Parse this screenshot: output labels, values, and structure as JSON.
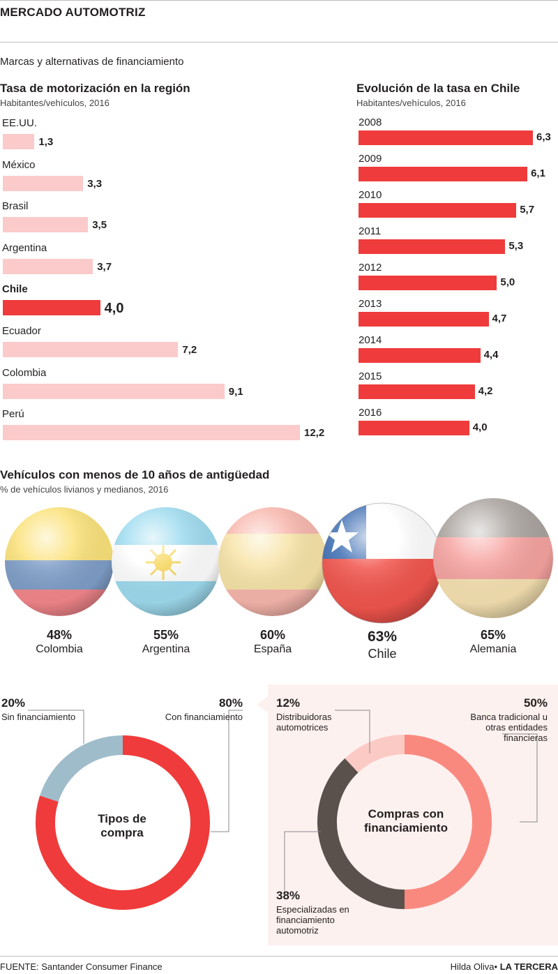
{
  "header": {
    "title": "MERCADO AUTOMOTRIZ",
    "subtitle": "Marcas y alternativas de financiamiento"
  },
  "colors": {
    "highlight": "#ef3b3b",
    "muted": "#fbcaca",
    "dark": "#5a514c",
    "grayblue": "#9fbccb",
    "rose": "#f9897f",
    "lightrose": "#fccac4",
    "panel": "#fdf1ef"
  },
  "chart_data": [
    {
      "type": "bar",
      "title": "Tasa de motorización en la región",
      "subtitle": "Habitantes/vehículos, 2016",
      "categories": [
        "EE.UU.",
        "México",
        "Brasil",
        "Argentina",
        "Chile",
        "Ecuador",
        "Colombia",
        "Perú"
      ],
      "values": [
        1.3,
        3.3,
        3.5,
        3.7,
        4.0,
        7.2,
        9.1,
        12.2
      ],
      "value_labels": [
        "1,3",
        "3,3",
        "3,5",
        "3,7",
        "4,0",
        "7,2",
        "9,1",
        "12,2"
      ],
      "highlight": "Chile",
      "orientation": "horizontal",
      "xlim": [
        0,
        12.2
      ]
    },
    {
      "type": "bar",
      "title": "Evolución de la tasa en Chile",
      "subtitle": "Habitantes/vehículos, 2016",
      "categories": [
        "2008",
        "2009",
        "2010",
        "2011",
        "2012",
        "2013",
        "2014",
        "2015",
        "2016"
      ],
      "values": [
        6.3,
        6.1,
        5.7,
        5.3,
        5.0,
        4.7,
        4.4,
        4.2,
        4.0
      ],
      "value_labels": [
        "6,3",
        "6,1",
        "5,7",
        "5,3",
        "5,0",
        "4,7",
        "4,4",
        "4,2",
        "4,0"
      ],
      "orientation": "horizontal",
      "xlim": [
        0,
        6.3
      ]
    },
    {
      "type": "bar",
      "title": "Vehículos con menos de 10 años de antigüedad",
      "subtitle": "% de vehículos livianos y medianos, 2016",
      "categories": [
        "Colombia",
        "Argentina",
        "España",
        "Chile",
        "Alemania"
      ],
      "values": [
        48,
        55,
        60,
        63,
        65
      ],
      "value_labels": [
        "48%",
        "55%",
        "60%",
        "63%",
        "65%"
      ],
      "highlight": "Chile",
      "icons": [
        "colombia-flag-icon",
        "argentina-flag-icon",
        "spain-flag-icon",
        "chile-flag-icon",
        "germany-flag-icon"
      ]
    },
    {
      "type": "pie",
      "title": "Tipos de compra",
      "slices": [
        {
          "pct_label": "80%",
          "label": "Con financiamiento",
          "value": 80
        },
        {
          "pct_label": "20%",
          "label": "Sin financiamiento",
          "value": 20
        }
      ]
    },
    {
      "type": "pie",
      "title": "Compras con financiamiento",
      "slices": [
        {
          "pct_label": "50%",
          "label": "Banca tradicional u otras entidades financieras",
          "value": 50
        },
        {
          "pct_label": "38%",
          "label": "Especializadas en financiamiento automotriz",
          "value": 38
        },
        {
          "pct_label": "12%",
          "label": "Distribuidoras automotrices",
          "value": 12
        }
      ]
    }
  ],
  "footer": {
    "source": "FUENTE: Santander Consumer Finance",
    "author": "Hilda Oliva",
    "brand": "LA TERCERA"
  }
}
